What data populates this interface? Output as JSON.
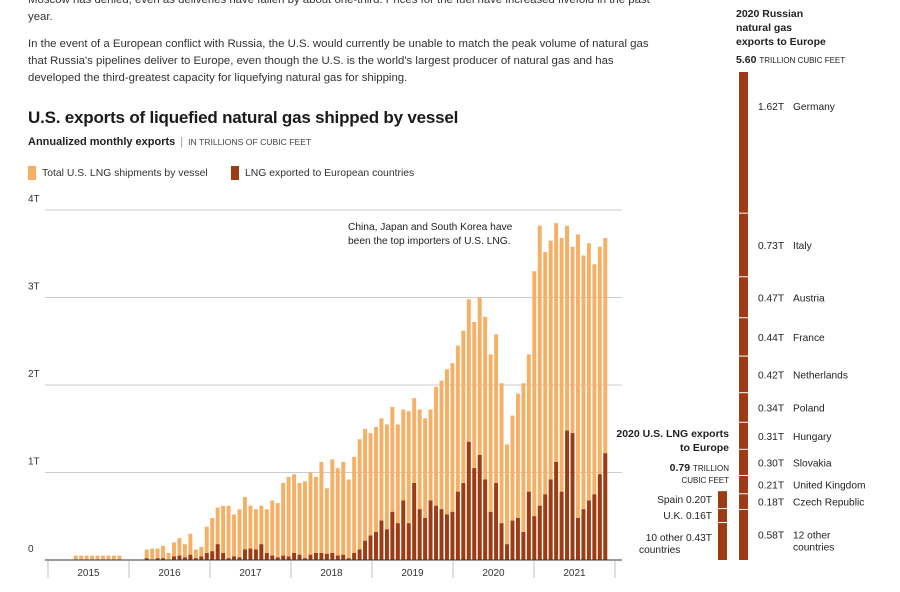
{
  "article": {
    "para1": "Moscow has denied, even as deliveries have fallen by about one-third. Prices for the fuel have increased fivefold in the past year.",
    "para2": "In the event of a European conflict with Russia, the U.S. would currently be unable to match the peak volume of natural gas that Russia's pipelines deliver to Europe, even though the U.S. is the world's largest producer of natural gas and has developed the third-greatest capacity for liquefying natural gas for shipping."
  },
  "chart_data": [
    {
      "type": "bar",
      "title": "U.S. exports of liquefied natural gas shipped by vessel",
      "subtitle": "Annualized monthly exports",
      "subtitle_unit": "IN TRILLIONS OF CUBIC FEET",
      "colors": {
        "total": "#f6b066",
        "europe": "#9c3b14",
        "grid": "#bdbdbd",
        "axis": "#333333"
      },
      "ylim": [
        0,
        4
      ],
      "y_ticks": [
        {
          "v": 0,
          "label": "0"
        },
        {
          "v": 1,
          "label": "1T"
        },
        {
          "v": 2,
          "label": "2T"
        },
        {
          "v": 3,
          "label": "3T"
        },
        {
          "v": 4,
          "label": "4T"
        }
      ],
      "x_tick_labels": [
        "2015",
        "2016",
        "2017",
        "2018",
        "2019",
        "2020",
        "2021"
      ],
      "annotation": "China, Japan and South Korea have been the top importers of U.S. LNG.",
      "series": [
        {
          "name": "Total U.S. LNG shipments by vessel",
          "values": [
            0.05,
            0.05,
            0.05,
            0.05,
            0.05,
            0.05,
            0.05,
            0.05,
            0.05,
            0,
            0,
            0,
            0,
            0.12,
            0.13,
            0.13,
            0.16,
            0.08,
            0.2,
            0.25,
            0.18,
            0.3,
            0.12,
            0.15,
            0.38,
            0.48,
            0.6,
            0.62,
            0.62,
            0.52,
            0.58,
            0.72,
            0.62,
            0.58,
            0.62,
            0.58,
            0.68,
            0.65,
            0.88,
            0.95,
            0.98,
            0.88,
            0.9,
            1.0,
            0.95,
            1.12,
            0.82,
            1.15,
            1.05,
            1.12,
            0.92,
            1.18,
            1.38,
            1.5,
            1.45,
            1.52,
            1.62,
            1.55,
            1.75,
            1.55,
            1.72,
            1.7,
            1.85,
            1.72,
            1.62,
            1.72,
            1.98,
            2.05,
            2.18,
            2.25,
            2.45,
            2.62,
            2.98,
            2.72,
            3.0,
            2.78,
            2.35,
            2.58,
            2.02,
            1.32,
            1.65,
            1.9,
            2.02,
            2.35,
            3.3,
            3.82,
            3.52,
            3.65,
            3.85,
            3.68,
            3.82,
            3.58,
            3.72,
            3.48,
            3.62,
            3.38,
            3.58,
            3.68
          ]
        },
        {
          "name": "LNG exported to European countries",
          "values": [
            0,
            0,
            0,
            0,
            0,
            0,
            0,
            0,
            0,
            0,
            0,
            0,
            0,
            0.02,
            0,
            0.02,
            0.02,
            0,
            0.04,
            0.05,
            0.03,
            0.06,
            0.02,
            0.04,
            0.08,
            0.1,
            0.18,
            0.08,
            0.02,
            0.04,
            0.03,
            0.12,
            0.13,
            0.12,
            0.18,
            0.08,
            0.05,
            0.03,
            0.05,
            0.04,
            0.08,
            0.06,
            0.02,
            0.06,
            0.08,
            0.08,
            0.07,
            0.08,
            0.05,
            0.06,
            0.02,
            0.08,
            0.12,
            0.22,
            0.28,
            0.32,
            0.45,
            0.35,
            0.55,
            0.42,
            0.68,
            0.42,
            0.88,
            0.58,
            0.48,
            0.68,
            0.62,
            0.58,
            0.52,
            0.55,
            0.78,
            0.88,
            1.35,
            1.05,
            1.2,
            0.92,
            0.55,
            0.88,
            0.42,
            0.18,
            0.45,
            0.48,
            0.32,
            0.78,
            0.5,
            0.62,
            0.75,
            0.92,
            1.12,
            0.78,
            1.48,
            1.45,
            0.48,
            0.58,
            0.68,
            0.75,
            0.98,
            1.22
          ]
        }
      ]
    },
    {
      "type": "bar",
      "title": "2020 Russian natural gas exports to Europe",
      "total_value": "5.60",
      "total_unit": "TRILLION CUBIC FEET",
      "color": "#9c3b14",
      "segments": [
        {
          "value": 1.62,
          "value_label": "1.62T",
          "label": "Germany"
        },
        {
          "value": 0.73,
          "value_label": "0.73T",
          "label": "Italy"
        },
        {
          "value": 0.47,
          "value_label": "0.47T",
          "label": "Austria"
        },
        {
          "value": 0.44,
          "value_label": "0.44T",
          "label": "France"
        },
        {
          "value": 0.42,
          "value_label": "0.42T",
          "label": "Netherlands"
        },
        {
          "value": 0.34,
          "value_label": "0.34T",
          "label": "Poland"
        },
        {
          "value": 0.31,
          "value_label": "0.31T",
          "label": "Hungary"
        },
        {
          "value": 0.3,
          "value_label": "0.30T",
          "label": "Slovakia"
        },
        {
          "value": 0.21,
          "value_label": "0.21T",
          "label": "United Kingdom"
        },
        {
          "value": 0.18,
          "value_label": "0.18T",
          "label": "Czech Republic"
        },
        {
          "value": 0.58,
          "value_label": "0.58T",
          "label": "12 other countries"
        }
      ]
    },
    {
      "type": "bar",
      "title": "2020 U.S. LNG exports to Europe",
      "total_value": "0.79",
      "total_unit": "TRILLION CUBIC FEET",
      "color": "#9c3b14",
      "segments": [
        {
          "value": 0.2,
          "value_label": "0.20T",
          "label": "Spain"
        },
        {
          "value": 0.16,
          "value_label": "0.16T",
          "label": "U.K."
        },
        {
          "value": 0.43,
          "value_label": "0.43T",
          "label": "10 other countries"
        }
      ]
    }
  ]
}
